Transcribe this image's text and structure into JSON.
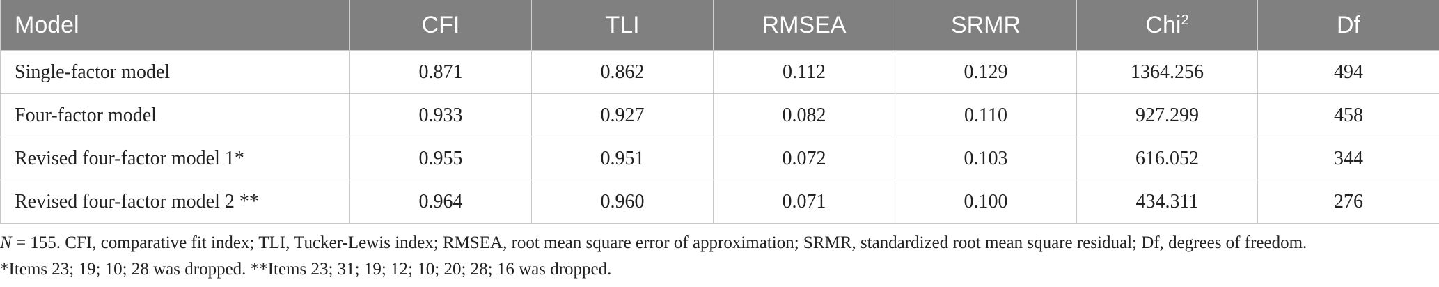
{
  "table": {
    "headers": [
      "Model",
      "CFI",
      "TLI",
      "RMSEA",
      "SRMR",
      "Chi",
      "Df"
    ],
    "chi_superscript": "2",
    "rows": [
      [
        "Single-factor model",
        "0.871",
        "0.862",
        "0.112",
        "0.129",
        "1364.256",
        "494"
      ],
      [
        "Four-factor model",
        "0.933",
        "0.927",
        "0.082",
        "0.110",
        "927.299",
        "458"
      ],
      [
        "Revised four-factor model 1*",
        "0.955",
        "0.951",
        "0.072",
        "0.103",
        "616.052",
        "344"
      ],
      [
        "Revised four-factor model 2 **",
        "0.964",
        "0.960",
        "0.071",
        "0.100",
        "434.311",
        "276"
      ]
    ]
  },
  "notes": {
    "n_symbol": "N",
    "line1_rest": " = 155. CFI, comparative fit index; TLI, Tucker-Lewis index; RMSEA, root mean square error of approximation; SRMR, standardized root mean square residual; Df, degrees of freedom.",
    "line2": "*Items 23; 19; 10; 28 was dropped. **Items 23; 31; 19; 12; 10; 20; 28; 16 was dropped."
  },
  "colors": {
    "header_bg": "#808080",
    "header_text": "#ffffff",
    "grid": "#c8c8c8"
  }
}
